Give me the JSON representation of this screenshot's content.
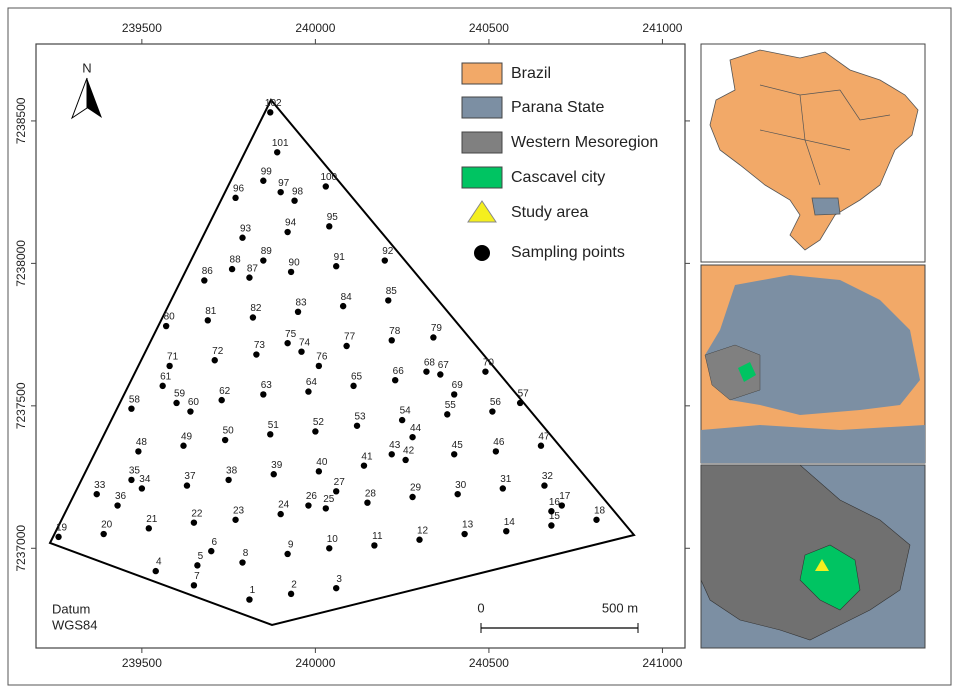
{
  "map": {
    "xlim": [
      239195,
      241065
    ],
    "ylim": [
      7236650,
      7238770
    ],
    "xticks": [
      239500,
      240000,
      240500,
      241000
    ],
    "yticks": [
      7237000,
      7237500,
      7238000,
      7238500
    ],
    "north": "N",
    "datum": [
      "Datum",
      "WGS84"
    ],
    "scale": [
      "0",
      "500 m"
    ],
    "points": [
      {
        "label": "1",
        "x": 239810,
        "y": 7236820
      },
      {
        "label": "2",
        "x": 239930,
        "y": 7236840
      },
      {
        "label": "3",
        "x": 240060,
        "y": 7236860
      },
      {
        "label": "4",
        "x": 239540,
        "y": 7236920
      },
      {
        "label": "5",
        "x": 239660,
        "y": 7236940
      },
      {
        "label": "6",
        "x": 239700,
        "y": 7236990
      },
      {
        "label": "7",
        "x": 239650,
        "y": 7236870
      },
      {
        "label": "8",
        "x": 239790,
        "y": 7236950
      },
      {
        "label": "9",
        "x": 239920,
        "y": 7236980
      },
      {
        "label": "10",
        "x": 240040,
        "y": 7237000
      },
      {
        "label": "11",
        "x": 240170,
        "y": 7237010
      },
      {
        "label": "12",
        "x": 240300,
        "y": 7237030
      },
      {
        "label": "13",
        "x": 240430,
        "y": 7237050
      },
      {
        "label": "14",
        "x": 240550,
        "y": 7237060
      },
      {
        "label": "15",
        "x": 240680,
        "y": 7237080
      },
      {
        "label": "16",
        "x": 240680,
        "y": 7237130
      },
      {
        "label": "17",
        "x": 240710,
        "y": 7237150
      },
      {
        "label": "18",
        "x": 240810,
        "y": 7237100
      },
      {
        "label": "19",
        "x": 239260,
        "y": 7237040
      },
      {
        "label": "20",
        "x": 239390,
        "y": 7237050
      },
      {
        "label": "21",
        "x": 239520,
        "y": 7237070
      },
      {
        "label": "22",
        "x": 239650,
        "y": 7237090
      },
      {
        "label": "23",
        "x": 239770,
        "y": 7237100
      },
      {
        "label": "24",
        "x": 239900,
        "y": 7237120
      },
      {
        "label": "25",
        "x": 240030,
        "y": 7237140
      },
      {
        "label": "26",
        "x": 239980,
        "y": 7237150
      },
      {
        "label": "27",
        "x": 240060,
        "y": 7237200
      },
      {
        "label": "28",
        "x": 240150,
        "y": 7237160
      },
      {
        "label": "29",
        "x": 240280,
        "y": 7237180
      },
      {
        "label": "30",
        "x": 240410,
        "y": 7237190
      },
      {
        "label": "31",
        "x": 240540,
        "y": 7237210
      },
      {
        "label": "32",
        "x": 240660,
        "y": 7237220
      },
      {
        "label": "33",
        "x": 239370,
        "y": 7237190
      },
      {
        "label": "34",
        "x": 239500,
        "y": 7237210
      },
      {
        "label": "35",
        "x": 239470,
        "y": 7237240
      },
      {
        "label": "36",
        "x": 239430,
        "y": 7237150
      },
      {
        "label": "37",
        "x": 239630,
        "y": 7237220
      },
      {
        "label": "38",
        "x": 239750,
        "y": 7237240
      },
      {
        "label": "39",
        "x": 239880,
        "y": 7237260
      },
      {
        "label": "40",
        "x": 240010,
        "y": 7237270
      },
      {
        "label": "41",
        "x": 240140,
        "y": 7237290
      },
      {
        "label": "42",
        "x": 240260,
        "y": 7237310
      },
      {
        "label": "43",
        "x": 240220,
        "y": 7237330
      },
      {
        "label": "44",
        "x": 240280,
        "y": 7237390
      },
      {
        "label": "45",
        "x": 240400,
        "y": 7237330
      },
      {
        "label": "46",
        "x": 240520,
        "y": 7237340
      },
      {
        "label": "47",
        "x": 240650,
        "y": 7237360
      },
      {
        "label": "48",
        "x": 239490,
        "y": 7237340
      },
      {
        "label": "49",
        "x": 239620,
        "y": 7237360
      },
      {
        "label": "50",
        "x": 239740,
        "y": 7237380
      },
      {
        "label": "51",
        "x": 239870,
        "y": 7237400
      },
      {
        "label": "52",
        "x": 240000,
        "y": 7237410
      },
      {
        "label": "53",
        "x": 240120,
        "y": 7237430
      },
      {
        "label": "54",
        "x": 240250,
        "y": 7237450
      },
      {
        "label": "55",
        "x": 240380,
        "y": 7237470
      },
      {
        "label": "56",
        "x": 240510,
        "y": 7237480
      },
      {
        "label": "57",
        "x": 240590,
        "y": 7237510
      },
      {
        "label": "58",
        "x": 239470,
        "y": 7237490
      },
      {
        "label": "59",
        "x": 239600,
        "y": 7237510
      },
      {
        "label": "60",
        "x": 239640,
        "y": 7237480
      },
      {
        "label": "61",
        "x": 239560,
        "y": 7237570
      },
      {
        "label": "62",
        "x": 239730,
        "y": 7237520
      },
      {
        "label": "63",
        "x": 239850,
        "y": 7237540
      },
      {
        "label": "64",
        "x": 239980,
        "y": 7237550
      },
      {
        "label": "65",
        "x": 240110,
        "y": 7237570
      },
      {
        "label": "66",
        "x": 240230,
        "y": 7237590
      },
      {
        "label": "67",
        "x": 240360,
        "y": 7237610
      },
      {
        "label": "68",
        "x": 240320,
        "y": 7237620
      },
      {
        "label": "69",
        "x": 240400,
        "y": 7237540
      },
      {
        "label": "70",
        "x": 240490,
        "y": 7237620
      },
      {
        "label": "71",
        "x": 239580,
        "y": 7237640
      },
      {
        "label": "72",
        "x": 239710,
        "y": 7237660
      },
      {
        "label": "73",
        "x": 239830,
        "y": 7237680
      },
      {
        "label": "74",
        "x": 239960,
        "y": 7237690
      },
      {
        "label": "75",
        "x": 239920,
        "y": 7237720
      },
      {
        "label": "76",
        "x": 240010,
        "y": 7237640
      },
      {
        "label": "77",
        "x": 240090,
        "y": 7237710
      },
      {
        "label": "78",
        "x": 240220,
        "y": 7237730
      },
      {
        "label": "79",
        "x": 240340,
        "y": 7237740
      },
      {
        "label": "80",
        "x": 239570,
        "y": 7237780
      },
      {
        "label": "81",
        "x": 239690,
        "y": 7237800
      },
      {
        "label": "82",
        "x": 239820,
        "y": 7237810
      },
      {
        "label": "83",
        "x": 239950,
        "y": 7237830
      },
      {
        "label": "84",
        "x": 240080,
        "y": 7237850
      },
      {
        "label": "85",
        "x": 240210,
        "y": 7237870
      },
      {
        "label": "86",
        "x": 239680,
        "y": 7237940
      },
      {
        "label": "87",
        "x": 239810,
        "y": 7237950
      },
      {
        "label": "88",
        "x": 239760,
        "y": 7237980
      },
      {
        "label": "89",
        "x": 239850,
        "y": 7238010
      },
      {
        "label": "90",
        "x": 239930,
        "y": 7237970
      },
      {
        "label": "91",
        "x": 240060,
        "y": 7237990
      },
      {
        "label": "92",
        "x": 240200,
        "y": 7238010
      },
      {
        "label": "93",
        "x": 239790,
        "y": 7238090
      },
      {
        "label": "94",
        "x": 239920,
        "y": 7238110
      },
      {
        "label": "95",
        "x": 240040,
        "y": 7238130
      },
      {
        "label": "96",
        "x": 239770,
        "y": 7238230
      },
      {
        "label": "97",
        "x": 239900,
        "y": 7238250
      },
      {
        "label": "98",
        "x": 239940,
        "y": 7238220
      },
      {
        "label": "99",
        "x": 239850,
        "y": 7238290
      },
      {
        "label": "100",
        "x": 240030,
        "y": 7238270
      },
      {
        "label": "101",
        "x": 239890,
        "y": 7238390
      },
      {
        "label": "102",
        "x": 239870,
        "y": 7238530
      }
    ]
  },
  "legend": [
    "Brazil",
    "Parana State",
    "Western Mesoregion",
    "Cascavel city",
    "Study area",
    "Sampling points"
  ]
}
